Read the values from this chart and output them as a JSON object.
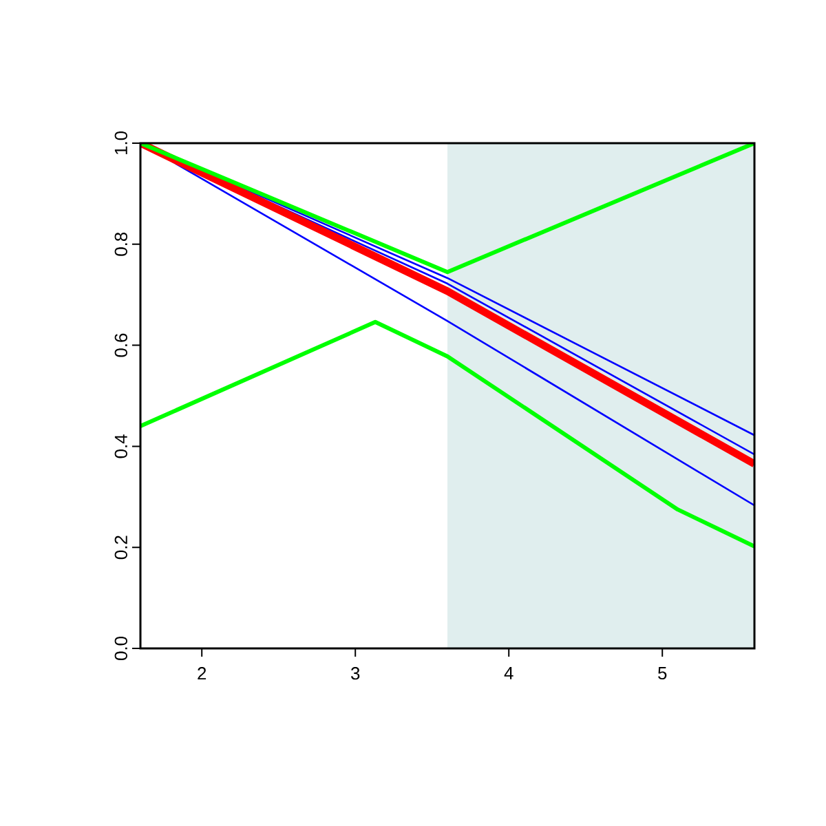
{
  "chart_data": {
    "type": "line",
    "xlim": [
      1.6,
      5.6
    ],
    "ylim": [
      0,
      1
    ],
    "xticks": [
      2,
      3,
      4,
      5
    ],
    "yticks": [
      {
        "value": 0,
        "label": "0.0"
      },
      0.2,
      0.4,
      0.6,
      0.8,
      {
        "value": 1,
        "label": "1.0"
      }
    ],
    "marker": "none",
    "line_style": "solid",
    "bands": [
      {
        "axis": "x",
        "from": 3.6,
        "to": 5.6,
        "color": "#e0eeee"
      }
    ],
    "series": [
      {
        "color": "#0000ff",
        "x": [
          1.6,
          3.6,
          5.6
        ],
        "values": [
          1.0,
          0.733,
          0.422
        ]
      },
      {
        "color": "#0000ff",
        "x": [
          1.6,
          3.6,
          5.6
        ],
        "values": [
          1.0,
          0.722,
          0.384
        ]
      },
      {
        "color": "#0000ff",
        "x": [
          1.6,
          3.6,
          5.6
        ],
        "values": [
          1.0,
          0.648,
          0.283
        ]
      },
      {
        "color": "#ff0000",
        "x": [
          1.6,
          3.6,
          5.6
        ],
        "values": [
          1.0,
          0.707,
          0.365
        ]
      },
      {
        "color": "#00ff00",
        "x": [
          1.6,
          3.6,
          5.6
        ],
        "values": [
          1.0,
          0.745,
          1.0
        ]
      },
      {
        "color": "#00ff00",
        "x": [
          1.6,
          3.13,
          3.6,
          4.6,
          5.1,
          5.6
        ],
        "values": [
          0.44,
          0.646,
          0.578,
          0.376,
          0.275,
          0.202
        ]
      }
    ]
  }
}
